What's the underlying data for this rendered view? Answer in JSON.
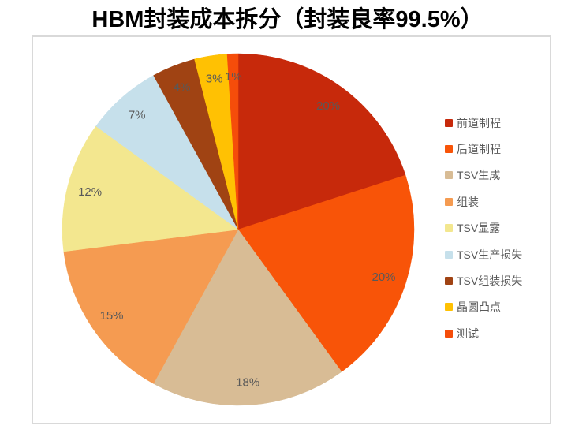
{
  "chart_data": {
    "type": "pie",
    "title": "HBM封装成本拆分（封装良率99.5%）",
    "unit": "%",
    "start_angle_deg": 0,
    "direction": "clockwise",
    "legend_position": "right",
    "data_label_color": "#595959",
    "slices": [
      {
        "label": "前道制程",
        "value": 20,
        "data_label": "20%",
        "color": "#C7290B"
      },
      {
        "label": "后道制程",
        "value": 20,
        "data_label": "20%",
        "color": "#F85408"
      },
      {
        "label": "TSV生成",
        "value": 18,
        "data_label": "18%",
        "color": "#D8BC95"
      },
      {
        "label": "组装",
        "value": 15,
        "data_label": "15%",
        "color": "#F59B51"
      },
      {
        "label": "TSV显露",
        "value": 12,
        "data_label": "12%",
        "color": "#F3E78F"
      },
      {
        "label": "TSV生产损失",
        "value": 7,
        "data_label": "7%",
        "color": "#C6E0EB"
      },
      {
        "label": "TSV组装损失",
        "value": 4,
        "data_label": "4%",
        "color": "#A04313"
      },
      {
        "label": "晶圆凸点",
        "value": 3,
        "data_label": "3%",
        "color": "#FFC103"
      },
      {
        "label": "测试",
        "value": 1,
        "data_label": "1%",
        "color": "#F54D0A"
      }
    ]
  }
}
